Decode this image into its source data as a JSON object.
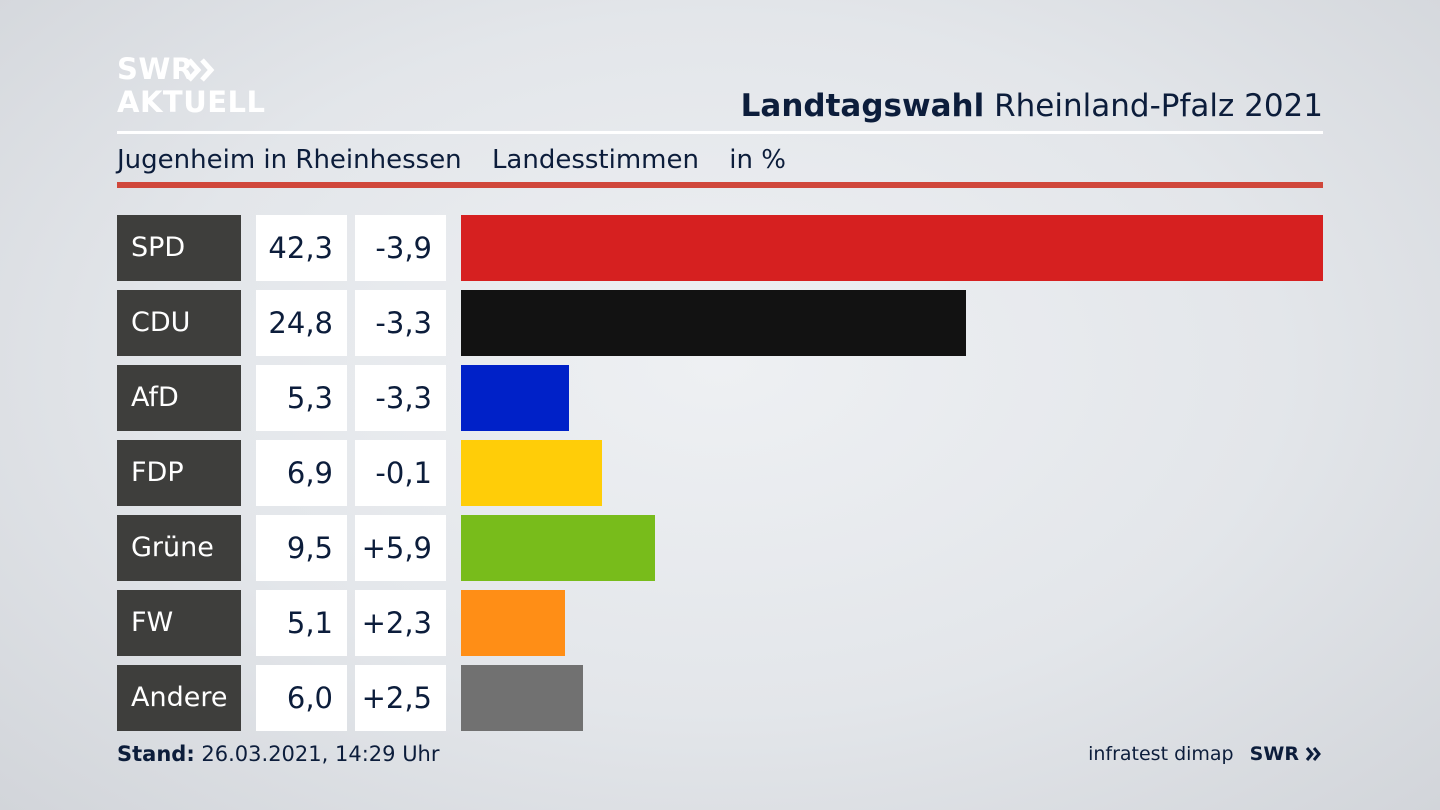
{
  "header": {
    "logo_line1": "SWR",
    "logo_line2": "AKTUELL",
    "title_bold": "Landtagswahl",
    "title_rest": "Rheinland-Pfalz 2021",
    "subtitle_place": "Jugenheim in Rheinhessen",
    "subtitle_vote": "Landesstimmen",
    "subtitle_unit": "in %"
  },
  "colors": {
    "text": "#0c1d3b",
    "accent_rule": "#d0473b",
    "party_box": "#3e3e3c"
  },
  "chart_data": {
    "type": "bar",
    "orientation": "horizontal",
    "categories": [
      "SPD",
      "CDU",
      "AfD",
      "FDP",
      "Grüne",
      "FW",
      "Andere"
    ],
    "values": [
      42.3,
      24.8,
      5.3,
      6.9,
      9.5,
      5.1,
      6.0
    ],
    "values_label": [
      "42,3",
      "24,8",
      "5,3",
      "6,9",
      "9,5",
      "5,1",
      "6,0"
    ],
    "changes": [
      -3.9,
      -3.3,
      -3.3,
      -0.1,
      5.9,
      2.3,
      2.5
    ],
    "changes_label": [
      "-3,9",
      "-3,3",
      "-3,3",
      "-0,1",
      "+5,9",
      "+2,3",
      "+2,5"
    ],
    "colors": [
      "#d62020",
      "#121212",
      "#0021c8",
      "#ffcd08",
      "#78bc1b",
      "#ff8e16",
      "#717171"
    ],
    "xlim": [
      0,
      42.3
    ],
    "grid": false
  },
  "footer": {
    "stand_label": "Stand:",
    "stand_value": "26.03.2021, 14:29 Uhr",
    "source": "infratest dimap",
    "source_brand": "SWR"
  }
}
